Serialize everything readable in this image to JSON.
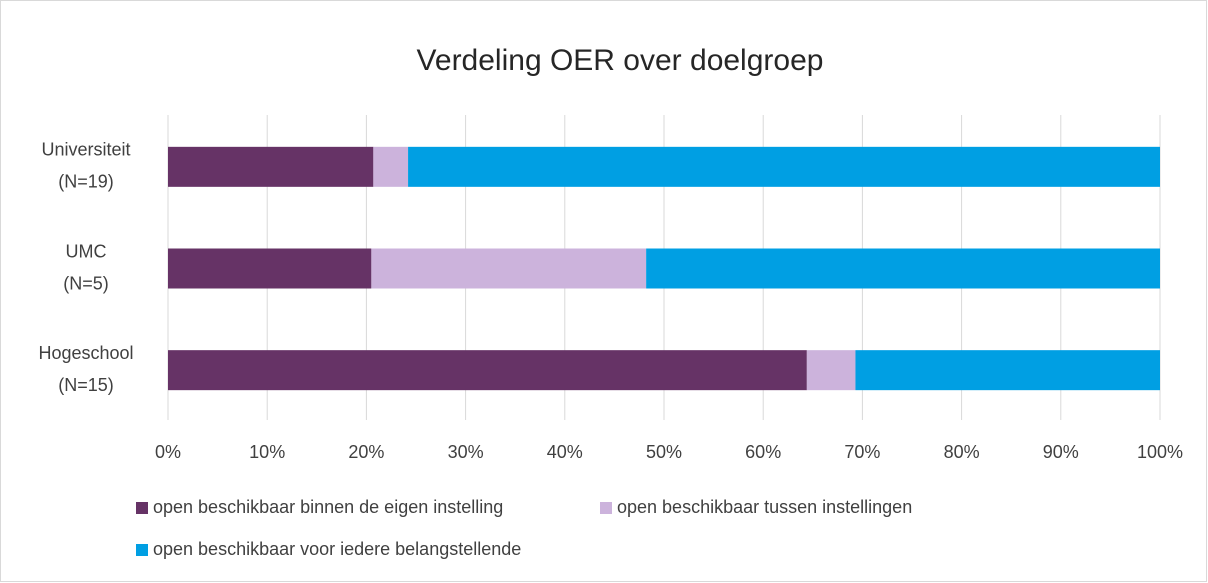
{
  "chart_data": {
    "type": "stacked_barh",
    "title": "Verdeling OER over doelgroep",
    "categories": [
      [
        "Universiteit",
        "(N=19)"
      ],
      [
        "UMC",
        "(N=5)"
      ],
      [
        "Hogeschool",
        "(N=15)"
      ]
    ],
    "series": [
      {
        "name": "open beschikbaar binnen de eigen instelling",
        "color": "#663366",
        "values": [
          20.7,
          20.5,
          64.4
        ]
      },
      {
        "name": "open beschikbaar tussen instellingen",
        "color": "#ccb3dc",
        "values": [
          3.5,
          27.7,
          4.9
        ]
      },
      {
        "name": "open beschikbaar voor iedere belangstellende",
        "color": "#009fe3",
        "values": [
          75.8,
          51.8,
          30.7
        ]
      }
    ],
    "xlim": [
      0,
      100
    ],
    "xticks": [
      {
        "value": 0,
        "label": "0%"
      },
      {
        "value": 10,
        "label": "10%"
      },
      {
        "value": 20,
        "label": "20%"
      },
      {
        "value": 30,
        "label": "30%"
      },
      {
        "value": 40,
        "label": "40%"
      },
      {
        "value": 50,
        "label": "50%"
      },
      {
        "value": 60,
        "label": "60%"
      },
      {
        "value": 70,
        "label": "70%"
      },
      {
        "value": 80,
        "label": "80%"
      },
      {
        "value": 90,
        "label": "90%"
      },
      {
        "value": 100,
        "label": "100%"
      }
    ],
    "grid": true,
    "legend": "bottom"
  }
}
